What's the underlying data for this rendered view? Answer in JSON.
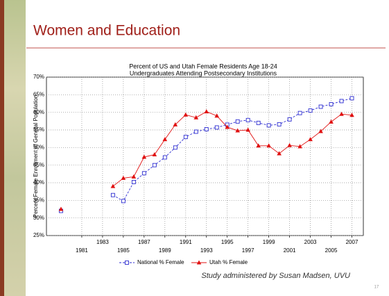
{
  "slide_title": "Women and Education",
  "footnote": "Study administered by Susan Madsen, UVU",
  "page_number": "17",
  "chart_data": {
    "type": "line",
    "title": "Percent of US and Utah Female Residents Age 18-24",
    "subtitle": "Undergraduates Attending Postsecondary Institutions",
    "y_label": "Percent Female Enrollment of General Population",
    "x": [
      1979,
      1980,
      1981,
      1982,
      1983,
      1984,
      1985,
      1986,
      1987,
      1988,
      1989,
      1990,
      1991,
      1992,
      1993,
      1994,
      1995,
      1996,
      1997,
      1998,
      1999,
      2000,
      2001,
      2002,
      2003,
      2004,
      2005,
      2006,
      2007
    ],
    "series": [
      {
        "name": "National % Female",
        "color": "#2a2ad0",
        "values": [
          32,
          null,
          null,
          null,
          null,
          36.5,
          34.8,
          40.2,
          42.7,
          45,
          47.2,
          50,
          53,
          54.5,
          55.2,
          55.7,
          56.5,
          57.4,
          57.8,
          57,
          56.3,
          56.6,
          58,
          59.8,
          60.5,
          61.6,
          62.3,
          63.2,
          64
        ]
      },
      {
        "name": "Utah % Female",
        "color": "#e01010",
        "values": [
          32.5,
          null,
          null,
          null,
          null,
          39,
          41.3,
          41.7,
          47.3,
          48,
          52.3,
          56.5,
          59.3,
          58.5,
          60.2,
          59,
          55.8,
          54.8,
          55,
          50.5,
          50.5,
          48.3,
          50.6,
          50.3,
          52.3,
          54.6,
          57.3,
          59.5,
          59.2
        ]
      }
    ],
    "xlim": [
      1977.6,
      2008.1
    ],
    "xticks": [
      1981,
      1983,
      1985,
      1987,
      1989,
      1991,
      1993,
      1995,
      1997,
      1999,
      2001,
      2003,
      2005,
      2007
    ],
    "ylim": [
      25,
      70
    ],
    "yticks": [
      {
        "value": 25,
        "label": "25%"
      },
      {
        "value": 30,
        "label": "30%"
      },
      {
        "value": 35,
        "label": "35%"
      },
      {
        "value": 40,
        "label": "40%"
      },
      {
        "value": 45,
        "label": "45%"
      },
      {
        "value": 50,
        "label": "50%"
      },
      {
        "value": 55,
        "label": "55%"
      },
      {
        "value": 60,
        "label": "60%"
      },
      {
        "value": 65,
        "label": "65%"
      },
      {
        "value": 70,
        "label": "70%"
      }
    ],
    "grid": true
  }
}
